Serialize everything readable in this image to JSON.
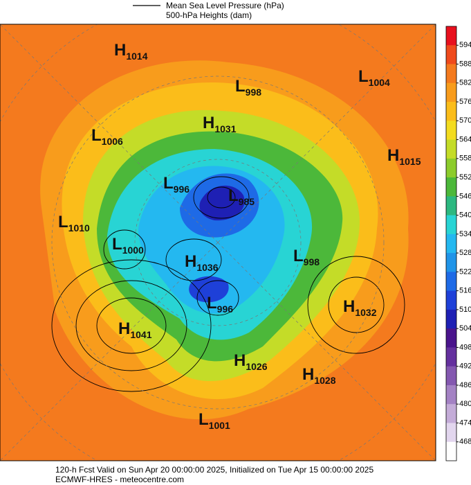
{
  "header": {
    "legend_line": "Mean Sea Level Pressure (hPa)",
    "legend_shade": "500-hPa Heights (dam)"
  },
  "colorbar": {
    "labels": [
      594,
      588,
      582,
      576,
      570,
      564,
      558,
      552,
      546,
      540,
      534,
      528,
      522,
      516,
      510,
      504,
      498,
      492,
      486,
      480,
      474,
      468
    ],
    "colors": [
      "#e8101e",
      "#ef4a1c",
      "#f47a1e",
      "#f89c1c",
      "#fbbd1a",
      "#f3dc20",
      "#c4dc28",
      "#8ccc2c",
      "#4cb83a",
      "#2cb880",
      "#28d4d4",
      "#24b8f0",
      "#2094e8",
      "#1e6ae6",
      "#1e40d8",
      "#1e20b4",
      "#4a148c",
      "#64309e",
      "#8458b0",
      "#a482c4",
      "#c4acd8",
      "#e2d6ee",
      "#ffffff"
    ]
  },
  "centers": [
    {
      "label": "H",
      "value": 1014
    },
    {
      "label": "L",
      "value": 998
    },
    {
      "label": "L",
      "value": 1004
    },
    {
      "label": "L",
      "value": 1006
    },
    {
      "label": "H",
      "value": 1031
    },
    {
      "label": "H",
      "value": 1015
    },
    {
      "label": "L",
      "value": 996
    },
    {
      "label": "L",
      "value": 985
    },
    {
      "label": "L",
      "value": 1010
    },
    {
      "label": "L",
      "value": 1000
    },
    {
      "label": "H",
      "value": 1036
    },
    {
      "label": "L",
      "value": 998
    },
    {
      "label": "H",
      "value": 1032
    },
    {
      "label": "L",
      "value": 996
    },
    {
      "label": "H",
      "value": 1041
    },
    {
      "label": "H",
      "value": 1026
    },
    {
      "label": "H",
      "value": 1028
    },
    {
      "label": "L",
      "value": 1001
    }
  ],
  "footer": {
    "line1": "120-h Fcst Valid on Sun Apr 20 00:00:00 2025, Initialized on Tue Apr 15 00:00:00 2025",
    "line2": "ECMWF-HRES - meteocentre.com"
  }
}
